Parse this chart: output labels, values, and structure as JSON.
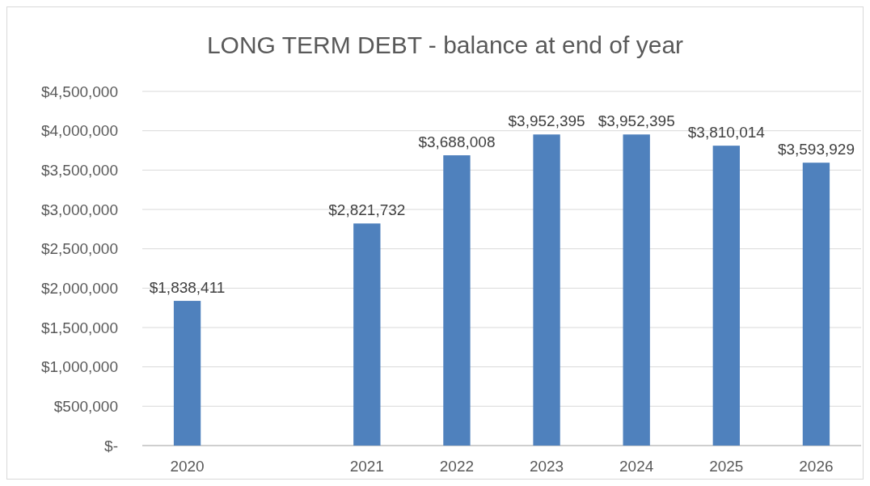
{
  "chart_data": {
    "type": "bar",
    "title": "LONG TERM DEBT - balance at end of year",
    "categories": [
      "2020",
      null,
      "2021",
      "2022",
      "2023",
      "2024",
      "2025",
      "2026"
    ],
    "values": [
      1838411,
      null,
      2821732,
      3688008,
      3952395,
      3952395,
      3810014,
      3593929
    ],
    "value_labels": [
      "$1,838,411",
      null,
      "$2,821,732",
      "$3,688,008",
      "$3,952,395",
      "$3,952,395",
      "$3,810,014",
      "$3,593,929"
    ],
    "color": "#4f81bd",
    "ylim": [
      0,
      4500000
    ],
    "yticks": [
      {
        "value": 0,
        "label": "$-"
      },
      {
        "value": 500000,
        "label": "$500,000"
      },
      {
        "value": 1000000,
        "label": "$1,000,000"
      },
      {
        "value": 1500000,
        "label": "$1,500,000"
      },
      {
        "value": 2000000,
        "label": "$2,000,000"
      },
      {
        "value": 2500000,
        "label": "$2,500,000"
      },
      {
        "value": 3000000,
        "label": "$3,000,000"
      },
      {
        "value": 3500000,
        "label": "$3,500,000"
      },
      {
        "value": 4000000,
        "label": "$4,000,000"
      },
      {
        "value": 4500000,
        "label": "$4,500,000"
      }
    ],
    "grid": "y"
  }
}
